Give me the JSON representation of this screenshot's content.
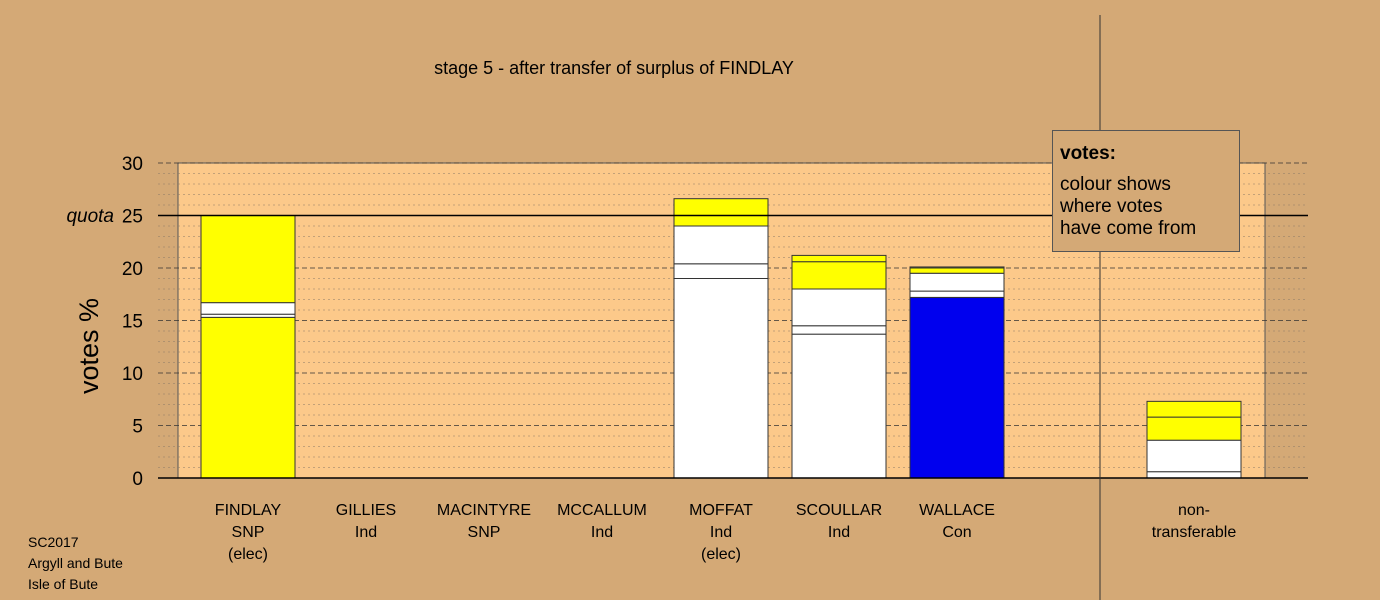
{
  "chart_data": {
    "type": "bar",
    "title": "stage 5 - after transfer of surplus of FINDLAY",
    "ylabel": "votes %",
    "ylim": [
      0,
      30
    ],
    "yticks": [
      0,
      5,
      10,
      15,
      20,
      25,
      30
    ],
    "quota": {
      "label": "quota",
      "value": 25
    },
    "grid": true,
    "categories": [
      {
        "name": "FINDLAY",
        "party": "SNP",
        "status": "(elec)"
      },
      {
        "name": "GILLIES",
        "party": "Ind",
        "status": ""
      },
      {
        "name": "MACINTYRE",
        "party": "SNP",
        "status": ""
      },
      {
        "name": "MCCALLUM",
        "party": "Ind",
        "status": ""
      },
      {
        "name": "MOFFAT",
        "party": "Ind",
        "status": "(elec)"
      },
      {
        "name": "SCOULLAR",
        "party": "Ind",
        "status": ""
      },
      {
        "name": "WALLACE",
        "party": "Con",
        "status": ""
      }
    ],
    "bars": [
      {
        "segments": [
          {
            "value": 15.3,
            "color": "#FFFF00"
          },
          {
            "value": 0.3,
            "color": "#FFFFFF"
          },
          {
            "value": 1.1,
            "color": "#FFFFFF"
          },
          {
            "value": 8.3,
            "color": "#FFFF00"
          }
        ]
      },
      {
        "segments": []
      },
      {
        "segments": []
      },
      {
        "segments": []
      },
      {
        "segments": [
          {
            "value": 19.0,
            "color": "#FFFFFF"
          },
          {
            "value": 1.4,
            "color": "#FFFFFF"
          },
          {
            "value": 3.6,
            "color": "#FFFFFF"
          },
          {
            "value": 2.6,
            "color": "#FFFF00"
          }
        ]
      },
      {
        "segments": [
          {
            "value": 13.7,
            "color": "#FFFFFF"
          },
          {
            "value": 0.8,
            "color": "#FFFFFF"
          },
          {
            "value": 3.5,
            "color": "#FFFFFF"
          },
          {
            "value": 2.6,
            "color": "#FFFF00"
          },
          {
            "value": 0.6,
            "color": "#FFFF00"
          }
        ]
      },
      {
        "segments": [
          {
            "value": 17.2,
            "color": "#0000EE"
          },
          {
            "value": 0.6,
            "color": "#FFFFFF"
          },
          {
            "value": 1.7,
            "color": "#FFFFFF"
          },
          {
            "value": 0.5,
            "color": "#FFFF00"
          },
          {
            "value": 0.1,
            "color": "#FFFF00"
          }
        ]
      }
    ],
    "nontransferable": {
      "label_line1": "non-",
      "label_line2": "transferable",
      "segments": [
        {
          "value": 0.6,
          "color": "#FFFFFF"
        },
        {
          "value": 3.0,
          "color": "#FFFFFF"
        },
        {
          "value": 2.2,
          "color": "#FFFF00"
        },
        {
          "value": 1.5,
          "color": "#FFFF00"
        }
      ]
    }
  },
  "legend": {
    "title": "votes:",
    "lines": [
      "colour shows",
      "where votes",
      "have come from"
    ]
  },
  "footer": [
    "SC2017",
    "Argyll and Bute",
    "Isle of Bute"
  ],
  "colors": {
    "background": "#D4A976",
    "plot": "#FCC98A"
  }
}
